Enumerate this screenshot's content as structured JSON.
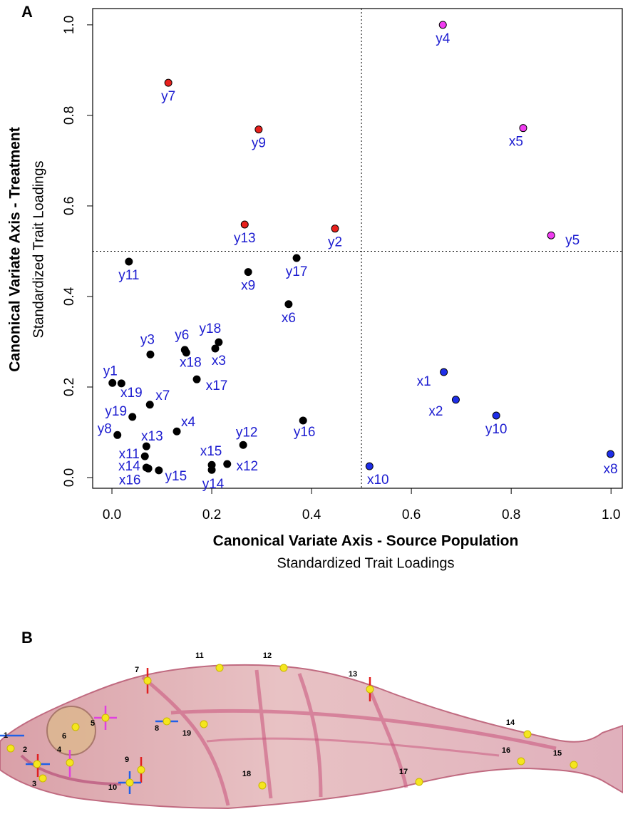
{
  "panel_labels": [
    "A",
    "B"
  ],
  "chart_data": {
    "type": "scatter",
    "xlabel": "Canonical Variate Axis - Source Population",
    "xlabel_sub": "Standardized Trait Loadings",
    "ylabel": "Canonical Variate Axis - Treatment",
    "ylabel_sub": "Standardized Trait Loadings",
    "xlim": [
      -0.0386,
      1.024
    ],
    "ylim": [
      -0.0236,
      1.036
    ],
    "xticks": [
      {
        "value": 0,
        "label": "0.0"
      },
      {
        "value": 0.2,
        "label": "0.2"
      },
      {
        "value": 0.4,
        "label": "0.4"
      },
      {
        "value": 0.6,
        "label": "0.6"
      },
      {
        "value": 0.8,
        "label": "0.8"
      },
      {
        "value": 1,
        "label": "1.0"
      }
    ],
    "yticks": [
      {
        "value": 0,
        "label": "0.0"
      },
      {
        "value": 0.2,
        "label": "0.2"
      },
      {
        "value": 0.4,
        "label": "0.4"
      },
      {
        "value": 0.6,
        "label": "0.6"
      },
      {
        "value": 0.8,
        "label": "0.8"
      },
      {
        "value": 1,
        "label": "1.0"
      }
    ],
    "reference_lines": {
      "x": 0.5,
      "y": 0.5
    },
    "label_color": "#1c1cd0",
    "series": [
      {
        "color": "#e8201c",
        "point_labels": [
          "y7",
          "y9",
          "y13",
          "y2"
        ],
        "x": [
          0.113,
          0.294,
          0.266,
          0.447
        ],
        "values": [
          0.872,
          0.769,
          0.559,
          0.55
        ]
      },
      {
        "color": "#f03cf0",
        "point_labels": [
          "y4",
          "x5",
          "y5"
        ],
        "x": [
          0.663,
          0.824,
          0.88
        ],
        "values": [
          1.0,
          0.772,
          0.535
        ]
      },
      {
        "color": "#1e2ee8",
        "point_labels": [
          "x1",
          "x2",
          "y10",
          "x10",
          "x8"
        ],
        "x": [
          0.665,
          0.689,
          0.77,
          0.516,
          0.999
        ],
        "values": [
          0.233,
          0.172,
          0.137,
          0.025,
          0.052
        ]
      },
      {
        "color": "#000000",
        "point_labels": [
          "y11",
          "y17",
          "x9",
          "x6",
          "y18",
          "x3",
          "y6",
          "x18",
          "y3",
          "x17",
          "y1",
          "x19",
          "x7",
          "y19",
          "y8",
          "x4",
          "x13",
          "x11",
          "x14",
          "x16",
          "y15",
          "x15",
          "y14",
          "x12",
          "y12",
          "y16"
        ],
        "x": [
          0.034,
          0.37,
          0.273,
          0.354,
          0.214,
          0.207,
          0.146,
          0.149,
          0.077,
          0.17,
          0.001,
          0.019,
          0.076,
          0.041,
          0.011,
          0.13,
          0.069,
          0.066,
          0.069,
          0.073,
          0.094,
          0.2,
          0.2,
          0.231,
          0.263,
          0.383
        ],
        "values": [
          0.477,
          0.485,
          0.454,
          0.383,
          0.299,
          0.285,
          0.282,
          0.276,
          0.272,
          0.217,
          0.209,
          0.208,
          0.161,
          0.134,
          0.094,
          0.102,
          0.069,
          0.047,
          0.022,
          0.02,
          0.016,
          0.028,
          0.017,
          0.03,
          0.072,
          0.126
        ]
      }
    ]
  },
  "landmarks": [
    "1",
    "2",
    "3",
    "4",
    "5",
    "6",
    "7",
    "8",
    "9",
    "10",
    "11",
    "12",
    "13",
    "14",
    "15",
    "16",
    "17",
    "18",
    "19"
  ]
}
